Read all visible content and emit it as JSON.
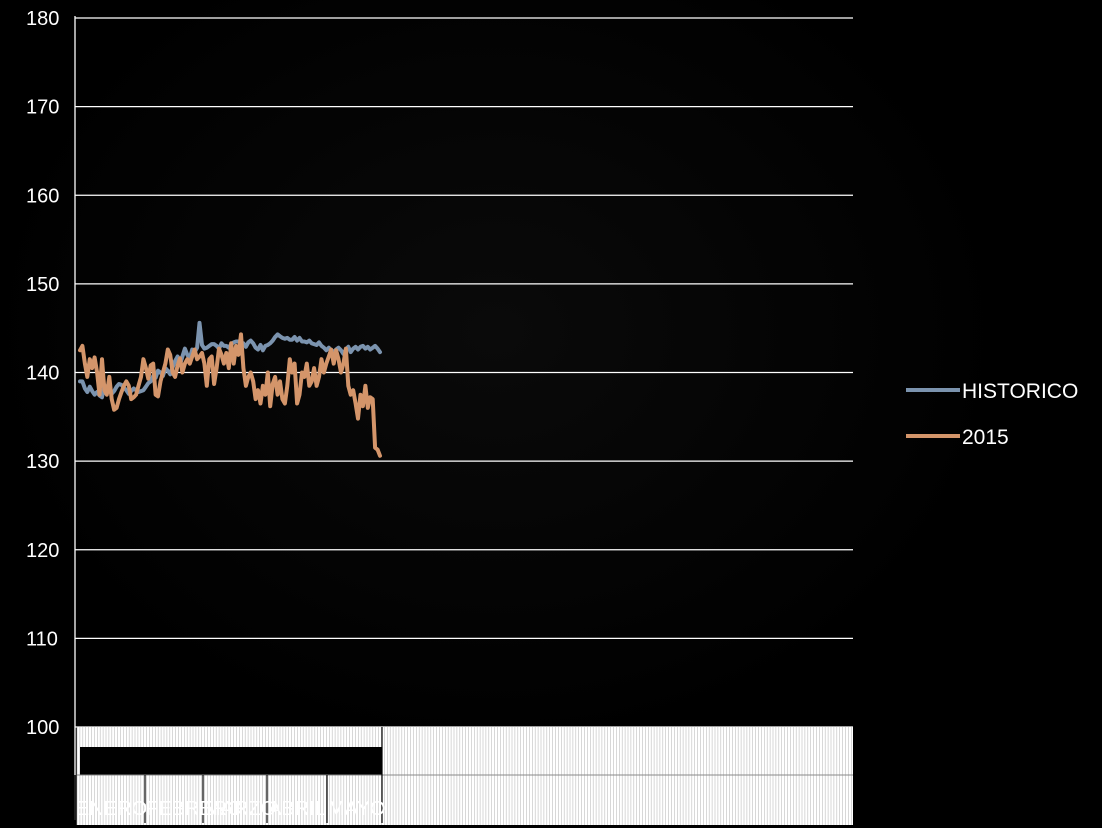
{
  "chart_data": {
    "type": "line",
    "ylim": [
      100,
      180
    ],
    "yticks": [
      100,
      110,
      120,
      130,
      140,
      150,
      160,
      170,
      180
    ],
    "months": [
      "ENERO",
      "FEBRERO",
      "MARZO",
      "ABRIL",
      "MAYO"
    ],
    "legend_position": "right",
    "grid": true,
    "series": [
      {
        "name": "HISTORICO",
        "color": "#7B93AE",
        "values": [
          139.0,
          139.0,
          138.2,
          137.8,
          138.4,
          137.9,
          137.5,
          137.8,
          137.4,
          137.2,
          138.6,
          137.8,
          138.0,
          137.6,
          137.9,
          138.4,
          138.7,
          138.6,
          138.3,
          138.0,
          137.6,
          137.9,
          138.2,
          138.0,
          137.8,
          137.9,
          138.0,
          138.4,
          138.8,
          139.0,
          139.6,
          139.4,
          140.2,
          140.0,
          139.6,
          140.5,
          140.2,
          139.8,
          140.6,
          141.3,
          141.8,
          140.9,
          141.8,
          142.7,
          142.0,
          141.6,
          142.6,
          142.3,
          142.8,
          145.6,
          143.1,
          142.7,
          142.8,
          143.0,
          143.2,
          143.2,
          143.0,
          142.7,
          143.3,
          143.0,
          143.0,
          142.8,
          143.2,
          143.4,
          143.5,
          143.5,
          143.2,
          143.3,
          142.9,
          143.4,
          143.6,
          143.3,
          142.8,
          142.6,
          143.1,
          142.5,
          143.0,
          143.1,
          143.3,
          143.6,
          144.0,
          144.3,
          144.1,
          143.9,
          143.8,
          143.9,
          143.7,
          143.7,
          144.0,
          143.6,
          143.9,
          143.5,
          143.5,
          143.4,
          143.6,
          143.3,
          143.2,
          143.1,
          143.4,
          143.0,
          142.8,
          142.5,
          142.8,
          142.5,
          142.3,
          142.6,
          142.8,
          142.5,
          142.1,
          142.6,
          142.9,
          142.3,
          142.7,
          142.9,
          142.6,
          142.9,
          143.0,
          142.7,
          142.9,
          142.6,
          142.8,
          143.0,
          142.7,
          142.3
        ]
      },
      {
        "name": "2015",
        "color": "#D4956A",
        "values": [
          142.5,
          143.0,
          141.0,
          139.5,
          141.5,
          140.5,
          141.7,
          140.0,
          137.5,
          141.5,
          138.0,
          137.5,
          139.5,
          137.0,
          135.8,
          136.0,
          137.0,
          137.8,
          138.5,
          139.0,
          138.5,
          137.0,
          137.2,
          137.5,
          138.5,
          139.5,
          141.5,
          140.5,
          139.3,
          140.8,
          141.0,
          137.5,
          137.3,
          139.0,
          140.0,
          141.0,
          142.6,
          142.0,
          140.0,
          139.5,
          140.8,
          141.6,
          140.0,
          141.0,
          141.5,
          141.0,
          141.8,
          142.6,
          141.5,
          141.8,
          142.2,
          141.0,
          138.5,
          141.5,
          141.8,
          138.7,
          140.5,
          142.7,
          142.0,
          141.0,
          142.2,
          140.5,
          143.3,
          141.0,
          143.0,
          142.0,
          144.3,
          140.5,
          138.5,
          139.5,
          140.0,
          139.0,
          137.0,
          138.0,
          136.5,
          138.5,
          137.5,
          140.0,
          136.2,
          138.7,
          139.5,
          137.5,
          139.0,
          137.0,
          136.5,
          138.5,
          141.5,
          140.0,
          141.0,
          136.5,
          137.5,
          140.0,
          139.5,
          141.0,
          138.5,
          139.0,
          140.5,
          138.5,
          139.5,
          141.5,
          140.0,
          141.0,
          141.8,
          142.6,
          141.0,
          142.5,
          141.5,
          140.0,
          141.0,
          142.7,
          138.5,
          137.5,
          138.0,
          136.5,
          134.8,
          137.5,
          136.2,
          138.5,
          136.0,
          137.2,
          137.0,
          131.5,
          131.3,
          130.6
        ]
      }
    ]
  }
}
